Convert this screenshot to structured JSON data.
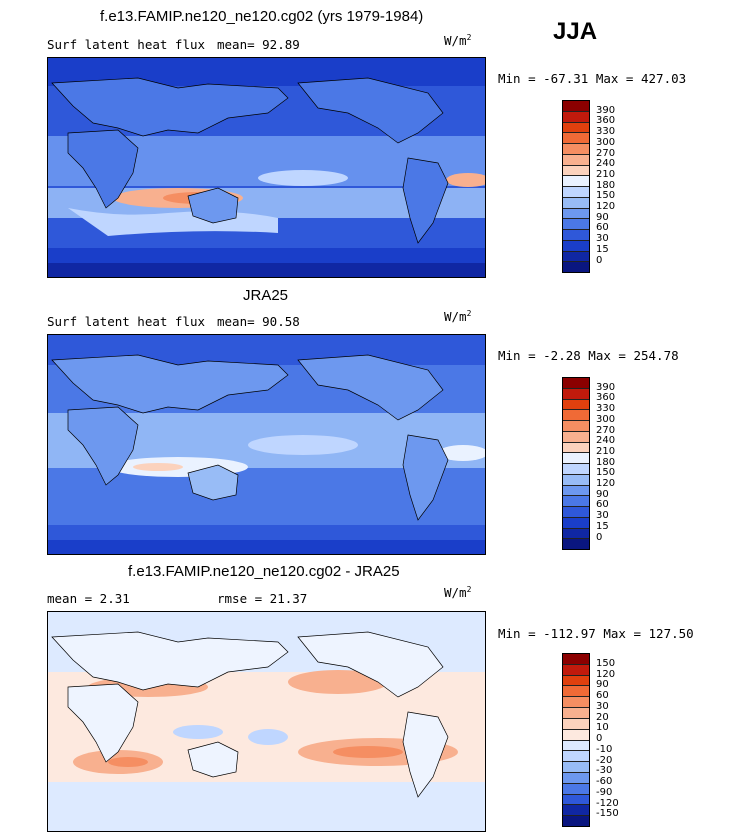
{
  "main_title": "f.e13.FAMIP.ne120_ne120.cg02 (yrs 1979-1984)",
  "season": "JJA",
  "panels": [
    {
      "header": "",
      "field": "Surf latent heat flux",
      "stat": "mean=  92.89",
      "units": "W/m",
      "units_sup": "2",
      "minmax": "Min = -67.31 Max = 427.03",
      "levels": [
        "390",
        "360",
        "330",
        "300",
        "270",
        "240",
        "210",
        "180",
        "150",
        "120",
        "90",
        "60",
        "30",
        "15",
        "0"
      ],
      "colors": [
        "#8b0000",
        "#c11a0c",
        "#e0400e",
        "#f06a36",
        "#f58e62",
        "#f8b08f",
        "#fbd2bd",
        "#eaf2ff",
        "#bfd6ff",
        "#98bcf6",
        "#6d98ef",
        "#4b78e6",
        "#2f58d9",
        "#1a3ec9",
        "#1027a3",
        "#0a1680"
      ]
    },
    {
      "header": "JRA25",
      "field": "Surf latent heat flux",
      "stat": "mean=  90.58",
      "units": "W/m",
      "units_sup": "2",
      "minmax": "Min =  -2.28 Max = 254.78",
      "levels": [
        "390",
        "360",
        "330",
        "300",
        "270",
        "240",
        "210",
        "180",
        "150",
        "120",
        "90",
        "60",
        "30",
        "15",
        "0"
      ],
      "colors": [
        "#8b0000",
        "#c11a0c",
        "#e0400e",
        "#f06a36",
        "#f58e62",
        "#f8b08f",
        "#fbd2bd",
        "#eaf2ff",
        "#bfd6ff",
        "#98bcf6",
        "#6d98ef",
        "#4b78e6",
        "#2f58d9",
        "#1a3ec9",
        "#1027a3",
        "#0a1680"
      ]
    },
    {
      "header": "f.e13.FAMIP.ne120_ne120.cg02 - JRA25",
      "field": "mean =   2.31",
      "stat": "rmse =  21.37",
      "units": "W/m",
      "units_sup": "2",
      "minmax": "Min = -112.97 Max = 127.50",
      "levels": [
        "150",
        "120",
        "90",
        "60",
        "30",
        "20",
        "10",
        "0",
        "-10",
        "-20",
        "-30",
        "-60",
        "-90",
        "-120",
        "-150"
      ],
      "colors": [
        "#8b0000",
        "#c11a0c",
        "#e0400e",
        "#f06a36",
        "#f58e62",
        "#f8b08f",
        "#fbd2bd",
        "#fde9df",
        "#ddeaff",
        "#bfd6ff",
        "#98bcf6",
        "#6d98ef",
        "#4b78e6",
        "#2f58d9",
        "#1027a3",
        "#0a1680"
      ]
    }
  ]
}
